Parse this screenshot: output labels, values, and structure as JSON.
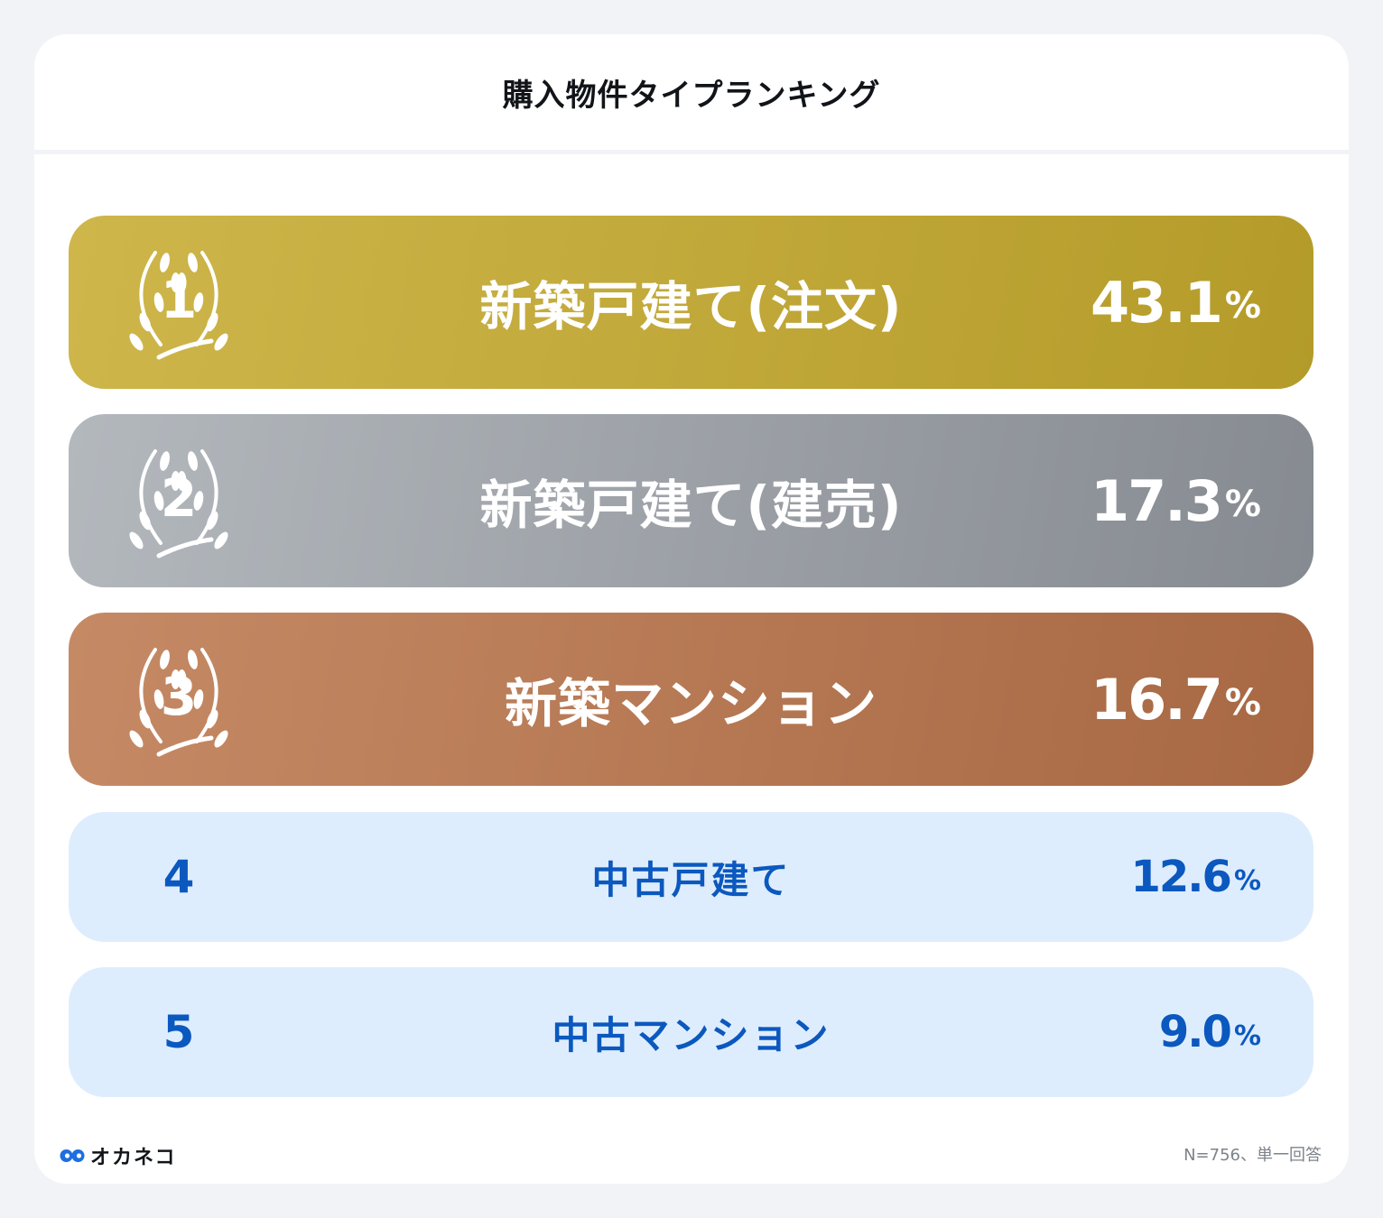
{
  "header": {
    "title": "購入物件タイプランキング"
  },
  "chart_data": {
    "type": "table",
    "title": "購入物件タイプランキング",
    "unit": "%",
    "rows": [
      {
        "rank": "1",
        "label": "新築戸建て(注文)",
        "value": "43.1",
        "tier": "gold"
      },
      {
        "rank": "2",
        "label": "新築戸建て(建売)",
        "value": "17.3",
        "tier": "silver"
      },
      {
        "rank": "3",
        "label": "新築マンション",
        "value": "16.7",
        "tier": "bronze"
      },
      {
        "rank": "4",
        "label": "中古戸建て",
        "value": "12.6",
        "tier": "plain"
      },
      {
        "rank": "5",
        "label": "中古マンション",
        "value": "9.0",
        "tier": "plain"
      }
    ]
  },
  "footer": {
    "logo_text": "オカネコ",
    "note": "N=756、単一回答"
  },
  "colors": {
    "gold": "#c2a93e",
    "silver": "#9ea2a8",
    "bronze": "#b67a55",
    "plain_bg": "#deedfd",
    "plain_text": "#0b58bf"
  }
}
